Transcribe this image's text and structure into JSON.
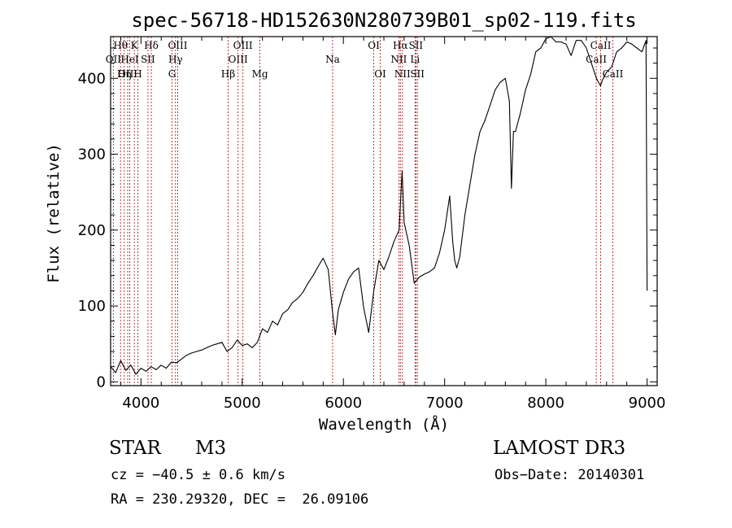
{
  "chart_data": {
    "type": "line",
    "title": "spec-56718-HD152630N280739B01_sp02-119.fits",
    "xlabel": "Wavelength (Å)",
    "ylabel": "Flux (relative)",
    "xlim": [
      3700,
      9100
    ],
    "ylim": [
      -5,
      455
    ],
    "xticks": [
      4000,
      5000,
      6000,
      7000,
      8000,
      9000
    ],
    "yticks": [
      0,
      100,
      200,
      300,
      400
    ],
    "grid": false,
    "series": [
      {
        "name": "spectrum",
        "x": [
          3700,
          3750,
          3800,
          3850,
          3900,
          3950,
          4000,
          4050,
          4100,
          4150,
          4200,
          4250,
          4300,
          4350,
          4400,
          4450,
          4500,
          4550,
          4600,
          4650,
          4700,
          4750,
          4800,
          4850,
          4900,
          4950,
          5000,
          5050,
          5100,
          5150,
          5200,
          5250,
          5300,
          5350,
          5400,
          5450,
          5500,
          5550,
          5600,
          5650,
          5700,
          5750,
          5800,
          5850,
          5890,
          5920,
          5950,
          6000,
          6050,
          6100,
          6150,
          6200,
          6250,
          6300,
          6350,
          6400,
          6450,
          6500,
          6550,
          6580,
          6600,
          6650,
          6700,
          6750,
          6800,
          6850,
          6900,
          6950,
          7000,
          7050,
          7080,
          7100,
          7120,
          7150,
          7200,
          7250,
          7300,
          7350,
          7400,
          7450,
          7500,
          7550,
          7600,
          7640,
          7660,
          7680,
          7700,
          7750,
          7800,
          7850,
          7900,
          7950,
          8000,
          8050,
          8100,
          8150,
          8200,
          8250,
          8300,
          8350,
          8400,
          8450,
          8500,
          8540,
          8560,
          8600,
          8650,
          8700,
          8750,
          8800,
          8850,
          8900,
          8950,
          8990,
          9000
        ],
        "y": [
          20,
          12,
          28,
          15,
          22,
          10,
          18,
          14,
          20,
          16,
          22,
          18,
          26,
          25,
          30,
          35,
          38,
          40,
          42,
          45,
          48,
          50,
          52,
          40,
          45,
          55,
          48,
          50,
          45,
          52,
          70,
          65,
          80,
          75,
          90,
          95,
          105,
          110,
          118,
          130,
          140,
          152,
          163,
          148,
          95,
          62,
          95,
          118,
          135,
          145,
          150,
          98,
          65,
          120,
          160,
          148,
          165,
          185,
          200,
          278,
          210,
          180,
          130,
          138,
          142,
          145,
          150,
          170,
          200,
          245,
          185,
          160,
          150,
          165,
          220,
          260,
          300,
          330,
          345,
          365,
          385,
          395,
          400,
          370,
          255,
          330,
          330,
          355,
          385,
          405,
          435,
          440,
          452,
          455,
          448,
          448,
          445,
          430,
          450,
          450,
          440,
          420,
          400,
          390,
          398,
          408,
          415,
          435,
          440,
          448,
          445,
          440,
          435,
          450,
          120
        ]
      }
    ],
    "lines": [
      {
        "label": "Hθ",
        "x": 3798,
        "row": 0
      },
      {
        "label": "OII",
        "x": 3727,
        "row": 1
      },
      {
        "label": "OIII",
        "x": 3869,
        "row": 2
      },
      {
        "label": "Hη",
        "x": 3835,
        "row": 2
      },
      {
        "label": "HeI",
        "x": 3889,
        "row": 1
      },
      {
        "label": "K",
        "x": 3934,
        "row": 0
      },
      {
        "label": "H",
        "x": 3969,
        "row": 2
      },
      {
        "label": "SII",
        "x": 4069,
        "row": 1
      },
      {
        "label": "Hδ",
        "x": 4102,
        "row": 0
      },
      {
        "label": "OIII",
        "x": 4363,
        "row": 0
      },
      {
        "label": "Hγ",
        "x": 4341,
        "row": 1
      },
      {
        "label": "G",
        "x": 4307,
        "row": 2
      },
      {
        "label": "Hβ",
        "x": 4861,
        "row": 2
      },
      {
        "label": "OIII",
        "x": 4959,
        "row": 1
      },
      {
        "label": "OIII",
        "x": 5007,
        "row": 0
      },
      {
        "label": "Mg",
        "x": 5175,
        "row": 2
      },
      {
        "label": "Na",
        "x": 5893,
        "row": 1
      },
      {
        "label": "OI",
        "x": 6300,
        "row": 0
      },
      {
        "label": "OI",
        "x": 6364,
        "row": 2
      },
      {
        "label": "NII",
        "x": 6548,
        "row": 1
      },
      {
        "label": "Hα",
        "x": 6563,
        "row": 0
      },
      {
        "label": "NII",
        "x": 6583,
        "row": 2
      },
      {
        "label": "SII",
        "x": 6716,
        "row": 0
      },
      {
        "label": "Li",
        "x": 6708,
        "row": 1
      },
      {
        "label": "SII",
        "x": 6731,
        "row": 2
      },
      {
        "label": "CaII",
        "x": 8498,
        "row": 1
      },
      {
        "label": "CaII",
        "x": 8542,
        "row": 0
      },
      {
        "label": "CaII",
        "x": 8662,
        "row": 2
      }
    ]
  },
  "info": {
    "object_class": "STAR",
    "subclass": "M3",
    "survey": "LAMOST DR3",
    "redshift": "cz = −40.5 ± 0.6 km/s",
    "obs_date": "Obs−Date: 20140301",
    "coords": "RA = 230.29320, DEC =  26.09106"
  },
  "colors": {
    "axis": "#000000",
    "spectrum": "#000000",
    "line_marker": "#b22222"
  }
}
